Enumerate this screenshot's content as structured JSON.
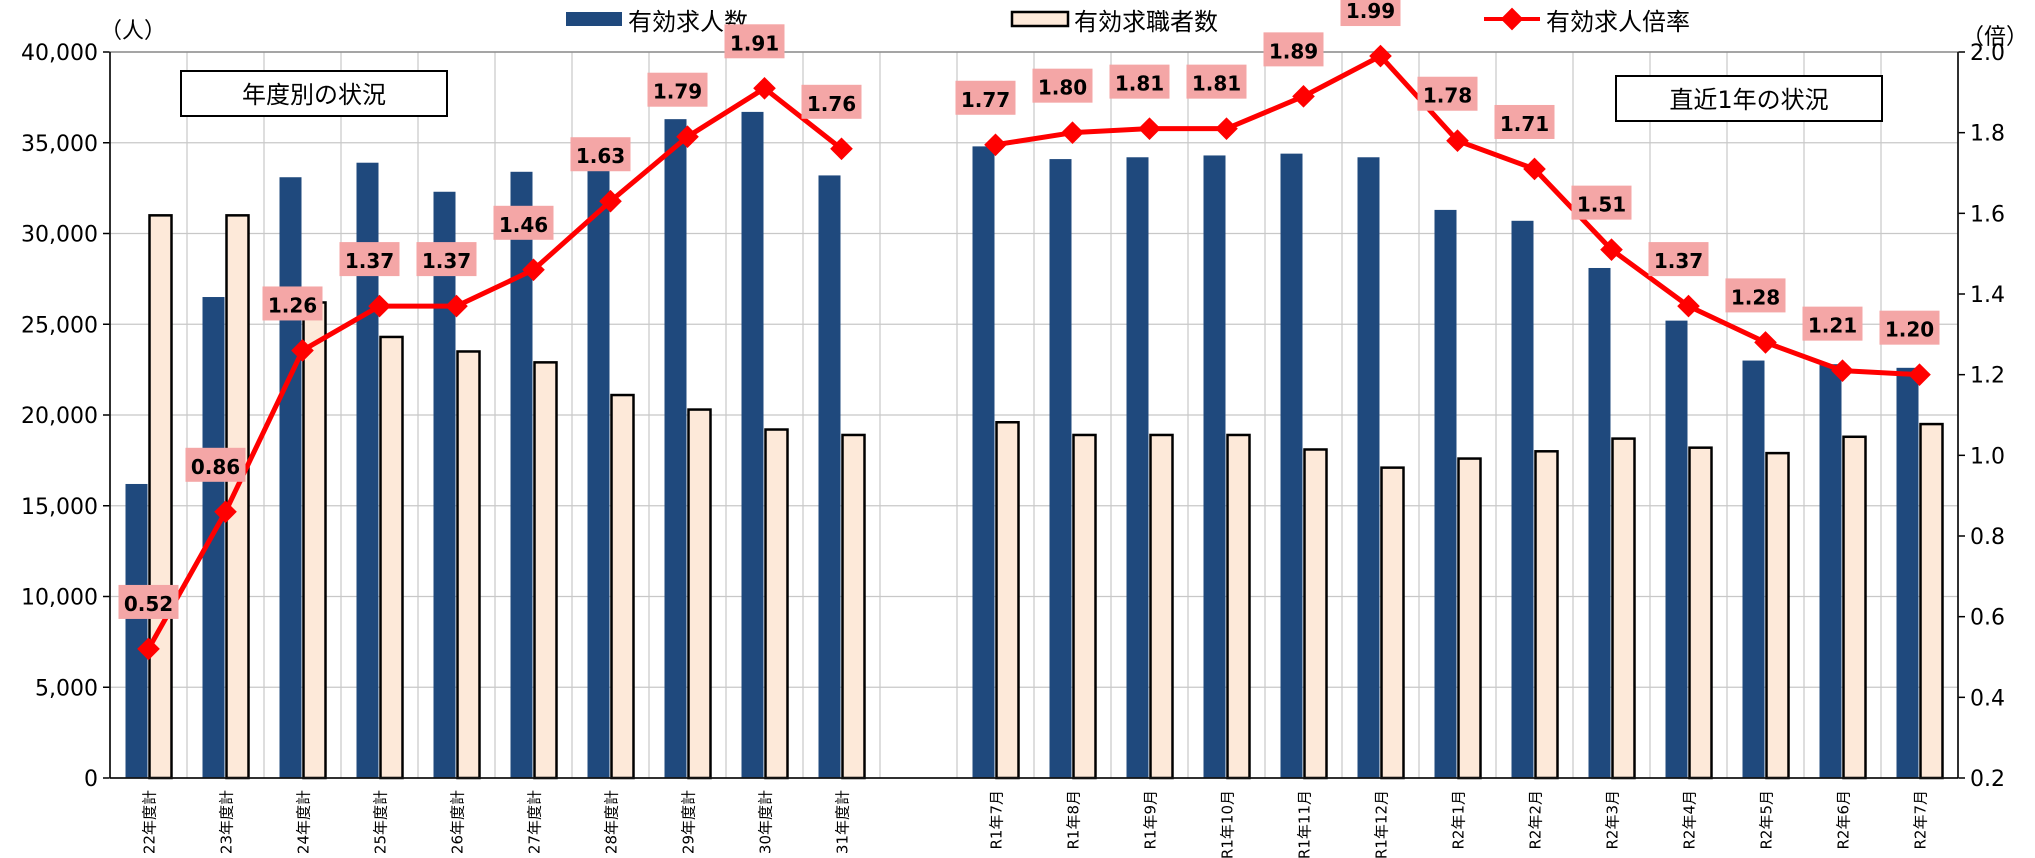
{
  "chart_data": {
    "type": "bar",
    "categories": [
      "22年度計",
      "23年度計",
      "24年度計",
      "25年度計",
      "26年度計",
      "27年度計",
      "28年度計",
      "29年度計",
      "30年度計",
      "31年度計",
      "",
      "R1年7月",
      "R1年8月",
      "R1年9月",
      "R1年10月",
      "R1年11月",
      "R1年12月",
      "R2年1月",
      "R2年2月",
      "R2年3月",
      "R2年4月",
      "R2年5月",
      "R2年6月",
      "R2年7月"
    ],
    "series": [
      {
        "name": "有効求人数",
        "type": "bar",
        "axis": "left",
        "color": "#1f497d",
        "values": [
          16200,
          26500,
          33100,
          33900,
          32300,
          33400,
          34600,
          36300,
          36700,
          33200,
          null,
          34800,
          34100,
          34200,
          34300,
          34400,
          34200,
          31300,
          30700,
          28100,
          25200,
          23000,
          22800,
          22600
        ]
      },
      {
        "name": "有効求職者数",
        "type": "bar",
        "axis": "left",
        "color": "#fde9d9",
        "values": [
          31000,
          31000,
          26200,
          24300,
          23500,
          22900,
          21100,
          20300,
          19200,
          18900,
          null,
          19600,
          18900,
          18900,
          18900,
          18100,
          17100,
          17600,
          18000,
          18700,
          18200,
          17900,
          18800,
          19500
        ]
      },
      {
        "name": "有効求人倍率",
        "type": "line",
        "axis": "right",
        "color": "#ff0000",
        "values": [
          0.52,
          0.86,
          1.26,
          1.37,
          1.37,
          1.46,
          1.63,
          1.79,
          1.91,
          1.76,
          null,
          1.77,
          1.8,
          1.81,
          1.81,
          1.89,
          1.99,
          1.78,
          1.71,
          1.51,
          1.37,
          1.28,
          1.21,
          1.2
        ],
        "labels": [
          "0.52",
          "0.86",
          "1.26",
          "1.37",
          "1.37",
          "1.46",
          "1.63",
          "1.79",
          "1.91",
          "1.76",
          "",
          "1.77",
          "1.80",
          "1.81",
          "1.81",
          "1.89",
          "1.99",
          "1.78",
          "1.71",
          "1.51",
          "1.37",
          "1.28",
          "1.21",
          "1.20"
        ]
      }
    ],
    "ylim": [
      0,
      40000
    ],
    "y2lim": [
      0.2,
      2.0
    ],
    "yticks": [
      "0",
      "5,000",
      "10,000",
      "15,000",
      "20,000",
      "25,000",
      "30,000",
      "35,000",
      "40,000"
    ],
    "y2ticks": [
      "0.2",
      "0.4",
      "0.6",
      "0.8",
      "1.0",
      "1.2",
      "1.4",
      "1.6",
      "1.8",
      "2.0"
    ],
    "ylabel": "（人）",
    "y2label": "（倍）",
    "annotations": [
      "年度別の状況",
      "直近1年の状況"
    ],
    "legend": "top",
    "grid": true
  }
}
